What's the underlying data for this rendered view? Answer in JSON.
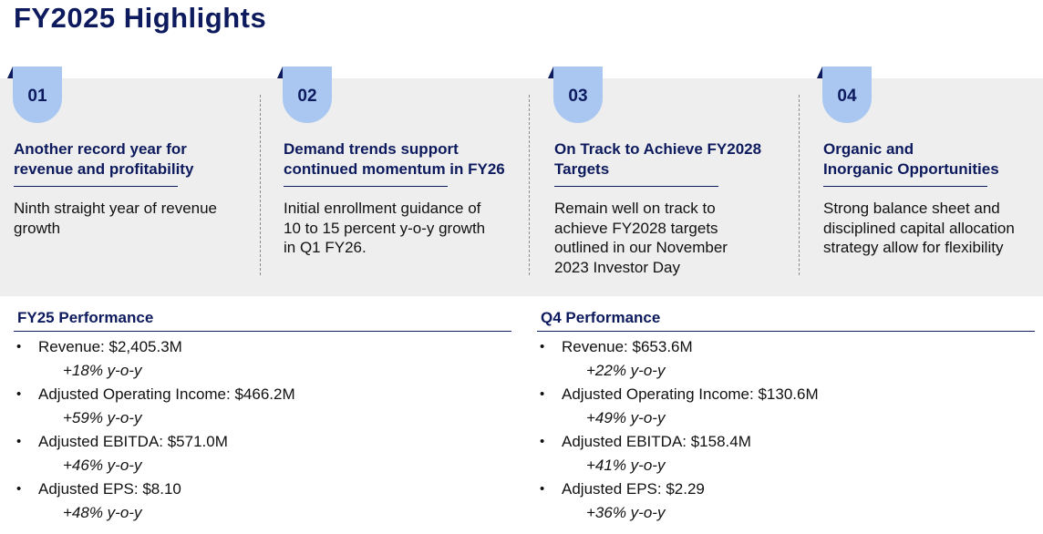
{
  "title": "FY2025 Highlights",
  "cards": [
    {
      "number": "01",
      "heading_lines": [
        "Another record year for",
        "revenue and profitability"
      ],
      "body_lines": [
        "Ninth straight year of revenue",
        "growth"
      ]
    },
    {
      "number": "02",
      "heading_lines": [
        "Demand trends support",
        "continued momentum in FY26"
      ],
      "body_lines": [
        "Initial enrollment guidance of",
        "10 to 15 percent y-o-y growth",
        "in Q1 FY26."
      ]
    },
    {
      "number": "03",
      "heading_lines": [
        "On Track to Achieve FY2028",
        "Targets"
      ],
      "body_lines": [
        "Remain well on track to",
        "achieve FY2028 targets",
        "outlined in our November",
        "2023 Investor Day"
      ]
    },
    {
      "number": "04",
      "heading_lines": [
        "Organic and",
        "Inorganic Opportunities"
      ],
      "body_lines": [
        "Strong balance sheet and",
        "disciplined capital allocation",
        "strategy allow for flexibility"
      ]
    }
  ],
  "performance": [
    {
      "title": "FY25 Performance",
      "items": [
        {
          "metric": "Revenue: $2,405.3M",
          "growth": "+18% y-o-y"
        },
        {
          "metric": "Adjusted Operating Income: $466.2M",
          "growth": "+59% y-o-y"
        },
        {
          "metric": "Adjusted EBITDA: $571.0M",
          "growth": "+46% y-o-y"
        },
        {
          "metric": "Adjusted EPS: $8.10",
          "growth": "+48% y-o-y"
        }
      ]
    },
    {
      "title": "Q4 Performance",
      "items": [
        {
          "metric": "Revenue: $653.6M",
          "growth": "+22% y-o-y"
        },
        {
          "metric": "Adjusted Operating Income: $130.6M",
          "growth": "+49% y-o-y"
        },
        {
          "metric": "Adjusted EBITDA: $158.4M",
          "growth": "+41% y-o-y"
        },
        {
          "metric": "Adjusted EPS: $2.29",
          "growth": "+36% y-o-y"
        }
      ]
    }
  ],
  "bullet_glyph": "•",
  "colors": {
    "navy": "#0d1b5e",
    "tab_blue": "#a9c7f0",
    "band_gray": "#eeeeee"
  }
}
